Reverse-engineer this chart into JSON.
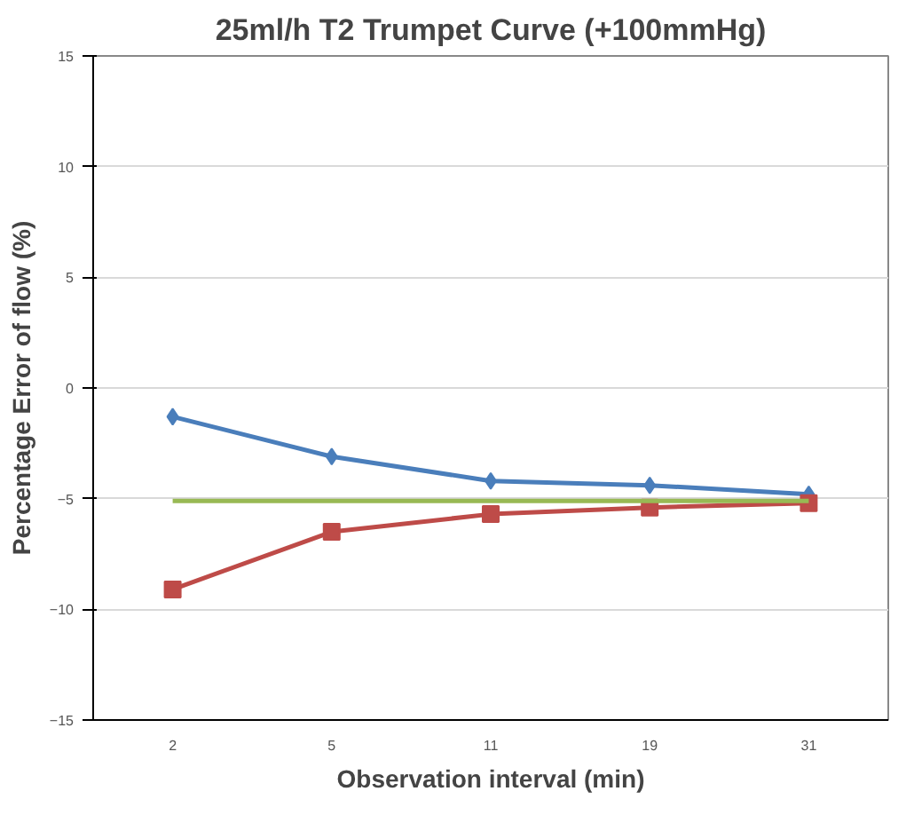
{
  "chart_data": {
    "type": "line",
    "title": "25ml/h T2 Trumpet Curve (+100mmHg)",
    "xlabel": "Observation interval (min)",
    "ylabel": "Percentage Error of flow (%)",
    "categories": [
      "2",
      "5",
      "11",
      "19",
      "31"
    ],
    "series": [
      {
        "color": "#4a7ebb",
        "marker": "diamond",
        "values": [
          -1.3,
          -3.1,
          -4.2,
          -4.4,
          -4.8
        ]
      },
      {
        "color": "#be4b48",
        "marker": "square",
        "values": [
          -9.1,
          -6.5,
          -5.7,
          -5.4,
          -5.2
        ]
      },
      {
        "color": "#98b954",
        "marker": "none",
        "values": [
          -5.1,
          -5.1,
          -5.1,
          -5.1,
          -5.1
        ]
      }
    ],
    "ylim": [
      -15,
      15
    ],
    "yticks": [
      -15,
      -10,
      -5,
      0,
      5,
      10,
      15
    ],
    "grid": "y"
  }
}
